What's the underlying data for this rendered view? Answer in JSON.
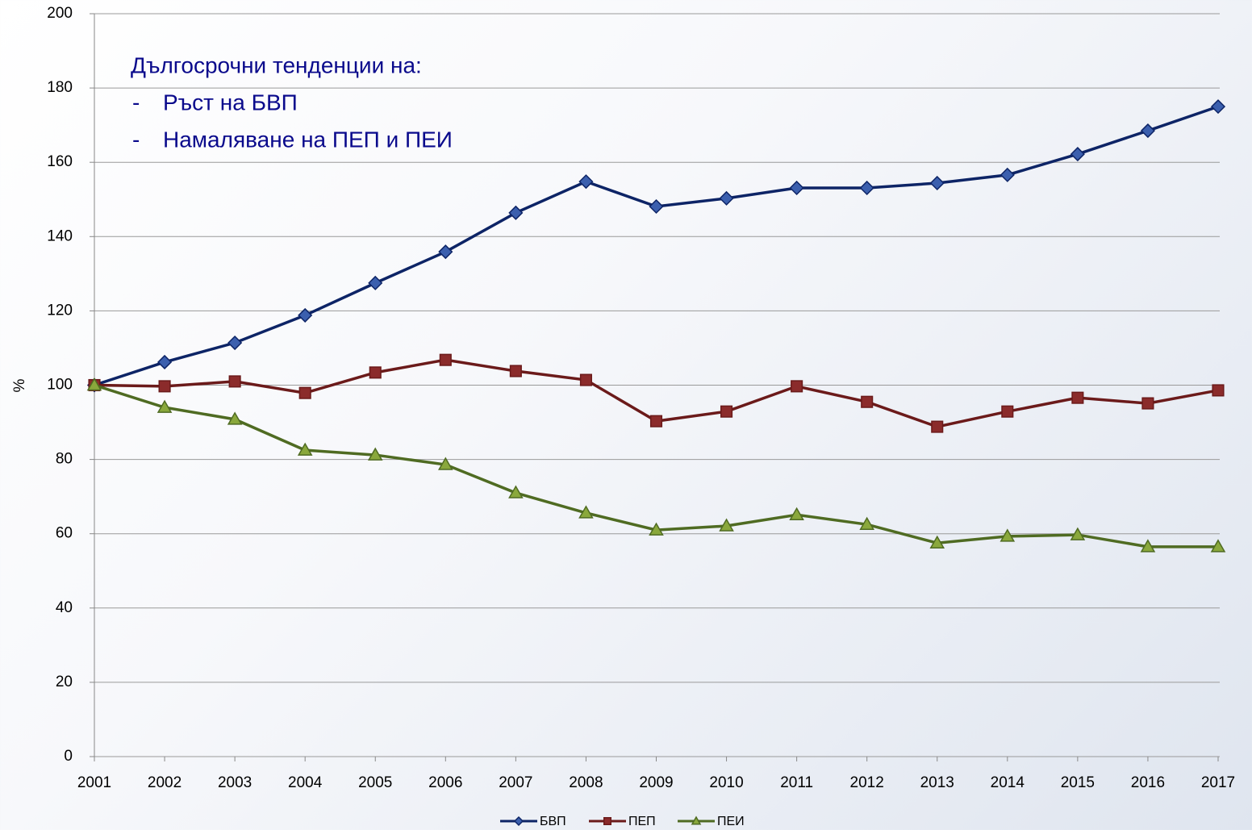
{
  "chart_data": {
    "type": "line",
    "y_label": "%",
    "annotation": {
      "heading": "Дългосрочни тенденции на:",
      "bullet": "-",
      "items": [
        "Ръст на БВП",
        "Намаляване на ПЕП и ПЕИ"
      ]
    },
    "categories": [
      "2001",
      "2002",
      "2003",
      "2004",
      "2005",
      "2006",
      "2007",
      "2008",
      "2009",
      "2010",
      "2011",
      "2012",
      "2013",
      "2014",
      "2015",
      "2016",
      "2017"
    ],
    "series": [
      {
        "name": "БВП",
        "color": "#0d2466",
        "marker": "diamond",
        "marker_color": "#3b5fae",
        "values": [
          100,
          106.2,
          111.4,
          118.8,
          127.5,
          135.9,
          146.4,
          154.8,
          148.1,
          150.3,
          153.1,
          153.1,
          154.4,
          156.6,
          162.2,
          168.5,
          175
        ]
      },
      {
        "name": "ПЕП",
        "color": "#6b1a1a",
        "marker": "square",
        "marker_color": "#8b2b2b",
        "values": [
          100,
          99.7,
          101,
          97.9,
          103.4,
          106.8,
          103.8,
          101.4,
          90.3,
          92.9,
          99.7,
          95.5,
          88.8,
          92.9,
          96.6,
          95.1,
          98.6
        ]
      },
      {
        "name": "ПЕИ",
        "color": "#4f6b22",
        "marker": "triangle",
        "marker_color": "#8aa83c",
        "values": [
          100,
          94,
          90.8,
          82.5,
          81.2,
          78.6,
          71,
          65.6,
          61,
          62.1,
          65.1,
          62.5,
          57.5,
          59.3,
          59.7,
          56.5,
          56.5
        ]
      }
    ],
    "ylim": [
      0,
      200
    ],
    "yticks": [
      0,
      20,
      40,
      60,
      80,
      100,
      120,
      140,
      160,
      180,
      200
    ],
    "grid": true,
    "legend": "bottom"
  }
}
